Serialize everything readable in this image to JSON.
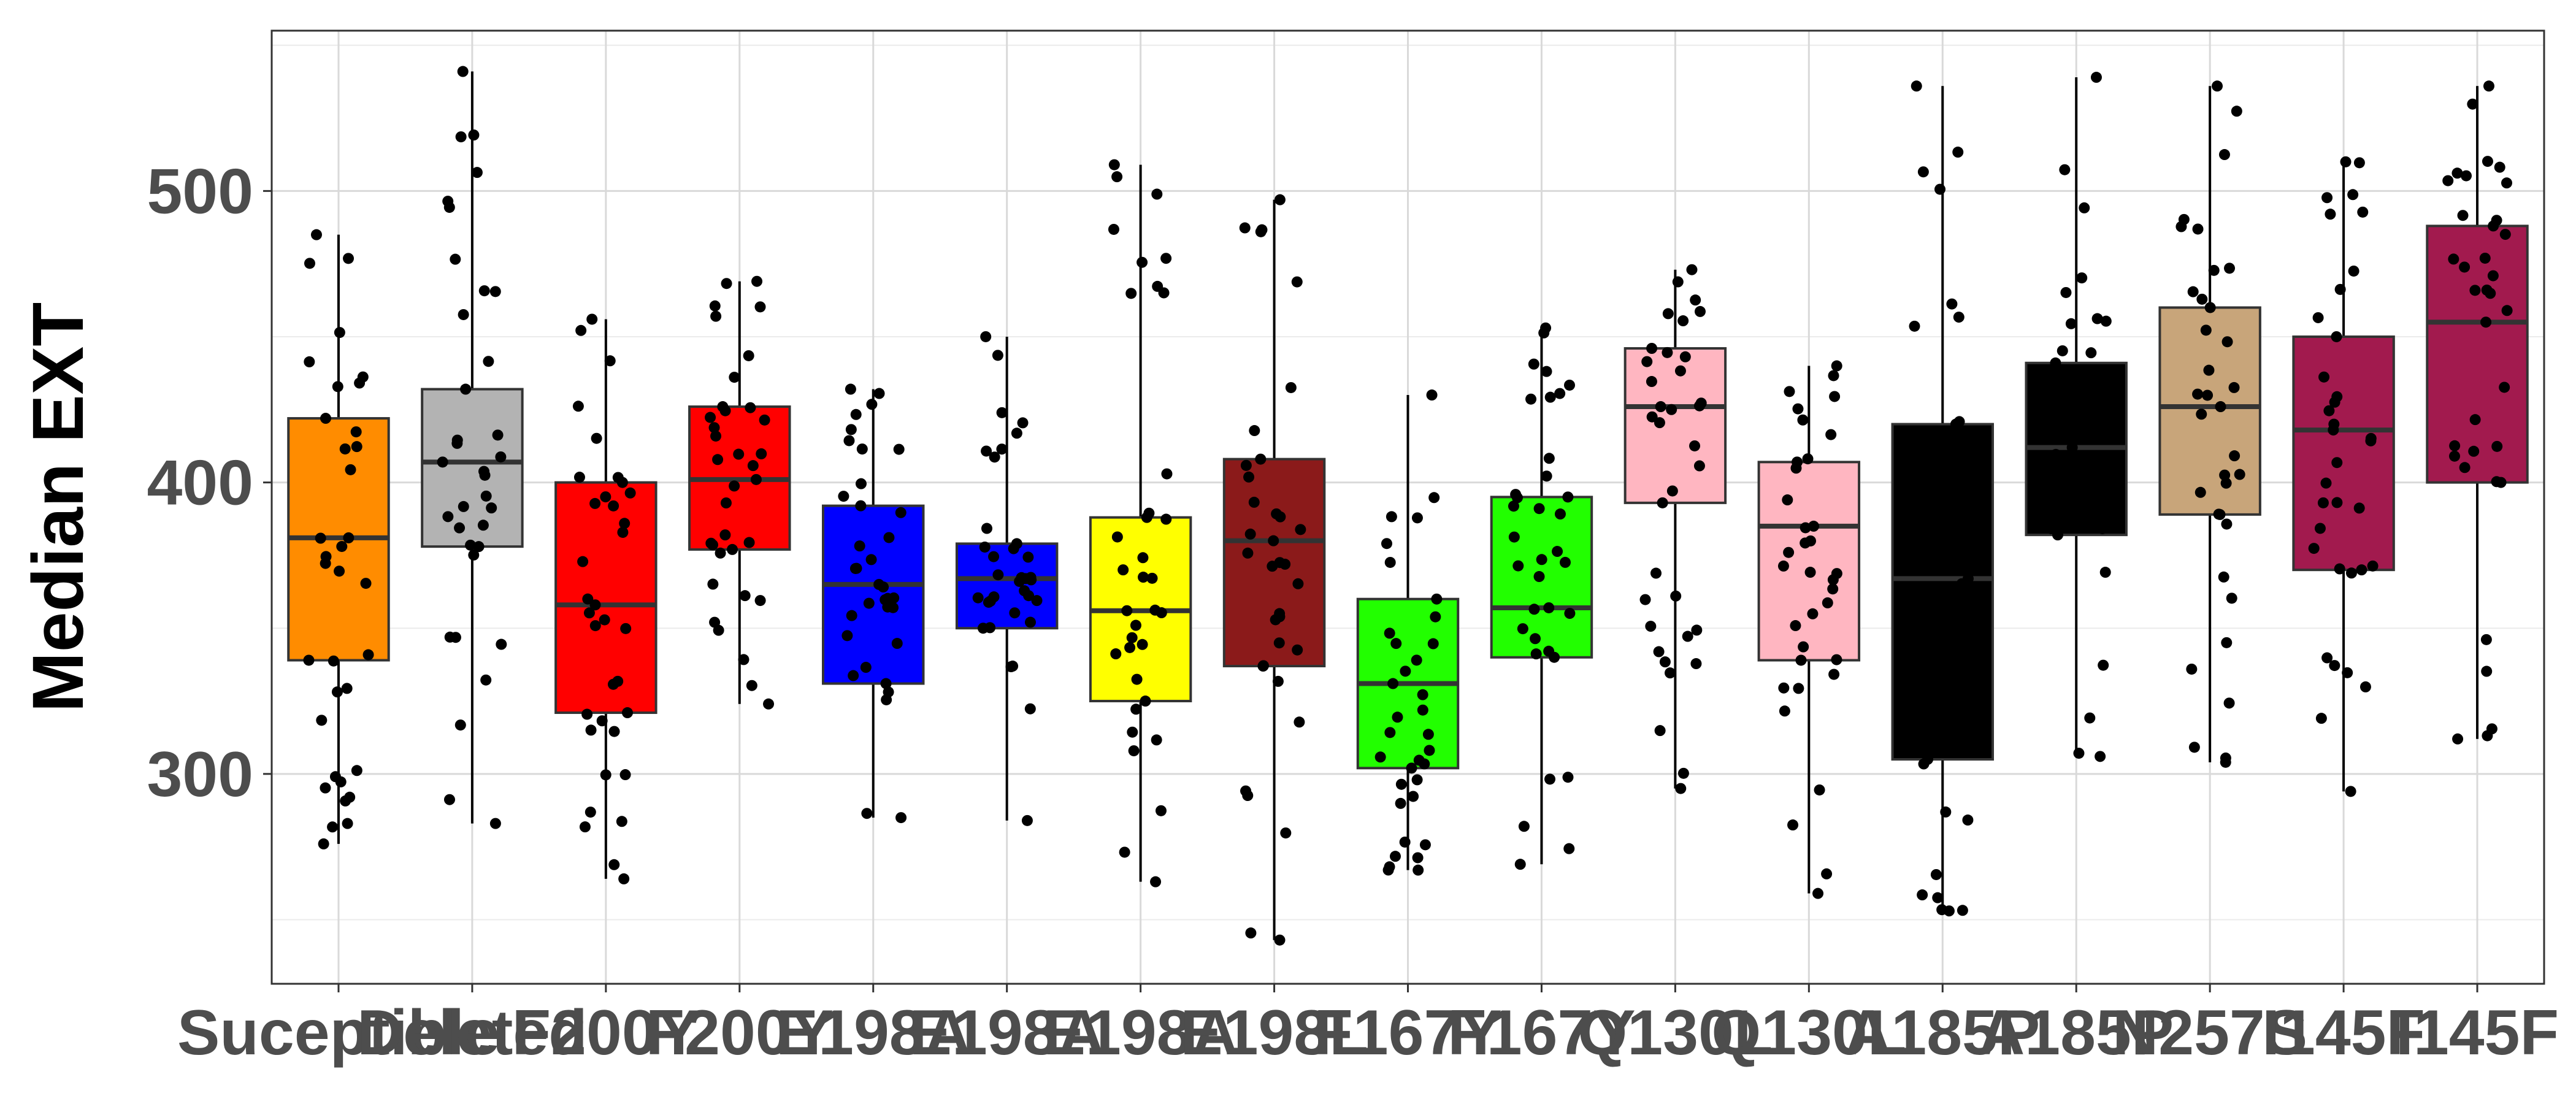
{
  "chart_data": {
    "type": "box",
    "title": "",
    "xlabel": "",
    "ylabel": "Median EXT",
    "ylim": [
      228,
      555
    ],
    "yticks": [
      300,
      400,
      500
    ],
    "grid": true,
    "legend": "none",
    "categories": [
      "Suceptible",
      "Deleted",
      "F200Y",
      "F200Y",
      "E198A",
      "E198A",
      "E198A",
      "E198L",
      "F167Y",
      "F167Y",
      "Q130L",
      "Q130L",
      "A185P",
      "A185P",
      "N257S",
      "I145F",
      "I145F"
    ],
    "box_colors": [
      "#FF8C00",
      "#B3B3B3",
      "#FF0000",
      "#FF0000",
      "#0000FF",
      "#0000FF",
      "#FFFF00",
      "#8B1A1A",
      "#22FF00",
      "#22FF00",
      "#FFB6C1",
      "#FFB6C1",
      "#000000",
      "#000000",
      "#C8A57A",
      "#A21A4E",
      "#A21A4E"
    ],
    "boxes": [
      {
        "min": 276,
        "q1": 339,
        "median": 381,
        "q3": 422,
        "max": 485
      },
      {
        "min": 283,
        "q1": 378,
        "median": 407,
        "q3": 432,
        "max": 541
      },
      {
        "min": 264,
        "q1": 321,
        "median": 358,
        "q3": 400,
        "max": 456
      },
      {
        "min": 324,
        "q1": 377,
        "median": 401,
        "q3": 426,
        "max": 469
      },
      {
        "min": 285,
        "q1": 331,
        "median": 365,
        "q3": 392,
        "max": 432
      },
      {
        "min": 284,
        "q1": 350,
        "median": 367,
        "q3": 379,
        "max": 450
      },
      {
        "min": 263,
        "q1": 325,
        "median": 356,
        "q3": 388,
        "max": 509
      },
      {
        "min": 243,
        "q1": 337,
        "median": 380,
        "q3": 408,
        "max": 497
      },
      {
        "min": 267,
        "q1": 302,
        "median": 331,
        "q3": 360,
        "max": 430
      },
      {
        "min": 269,
        "q1": 340,
        "median": 357,
        "q3": 395,
        "max": 453
      },
      {
        "min": 295,
        "q1": 393,
        "median": 426,
        "q3": 446,
        "max": 473
      },
      {
        "min": 259,
        "q1": 339,
        "median": 385,
        "q3": 407,
        "max": 440
      },
      {
        "min": 253,
        "q1": 305,
        "median": 367,
        "q3": 420,
        "max": 536
      },
      {
        "min": 306,
        "q1": 382,
        "median": 412,
        "q3": 441,
        "max": 539
      },
      {
        "min": 304,
        "q1": 389,
        "median": 426,
        "q3": 460,
        "max": 536
      },
      {
        "min": 294,
        "q1": 370,
        "median": 418,
        "q3": 450,
        "max": 510
      },
      {
        "min": 312,
        "q1": 400,
        "median": 455,
        "q3": 488,
        "max": 536
      }
    ]
  }
}
